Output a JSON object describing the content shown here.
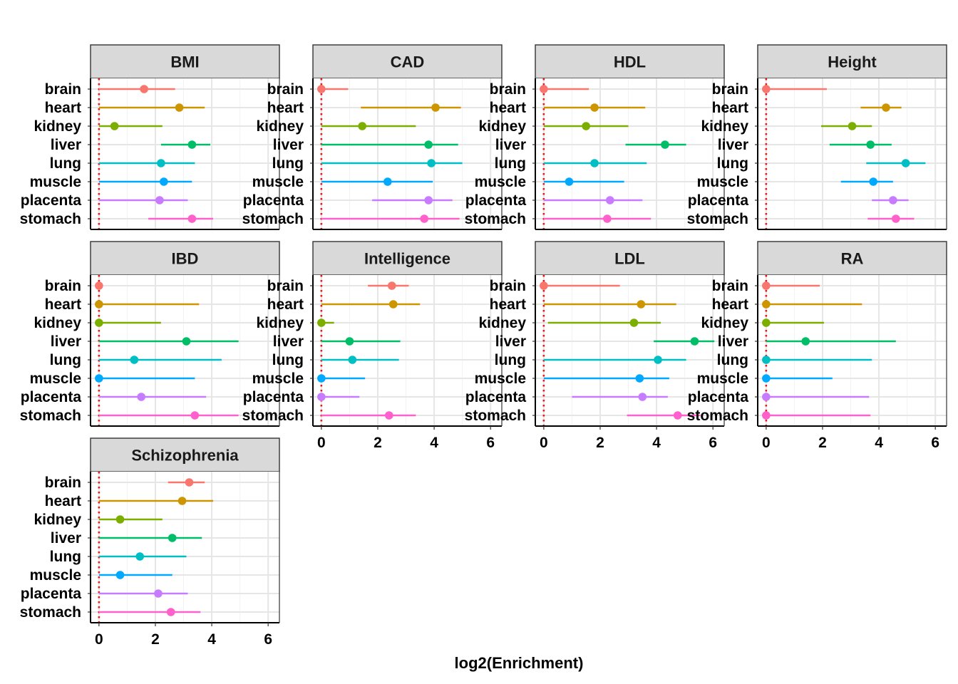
{
  "chart_data": {
    "type": "dot-interval",
    "facet_layout": "4 columns, free y scale per panel, shared x",
    "xlabel": "log2(Enrichment)",
    "xlim": [
      -0.3,
      6.4
    ],
    "x_ticks": [
      0,
      2,
      4,
      6
    ],
    "reference_line": {
      "x": 0,
      "style": "dotted",
      "color": "#e41a1c"
    },
    "grid": true,
    "legend": "none",
    "categories": [
      "brain",
      "heart",
      "kidney",
      "liver",
      "lung",
      "muscle",
      "placenta",
      "stomach"
    ],
    "category_colors": [
      "#F8766D",
      "#CD9600",
      "#7CAE00",
      "#00BE67",
      "#00BFC4",
      "#00A9FF",
      "#C77CFF",
      "#FF61CC"
    ],
    "panels": [
      {
        "name": "BMI",
        "points": [
          1.6,
          2.85,
          0.55,
          3.3,
          2.2,
          2.3,
          2.15,
          3.3
        ],
        "low": [
          0,
          0,
          0,
          2.2,
          0,
          0,
          0,
          1.75
        ],
        "high": [
          2.7,
          3.75,
          2.25,
          3.95,
          3.4,
          3.3,
          3.15,
          4.05
        ]
      },
      {
        "name": "CAD",
        "points": [
          0,
          4.05,
          1.45,
          3.8,
          3.9,
          2.35,
          3.8,
          3.65
        ],
        "low": [
          0,
          1.4,
          0,
          0,
          0,
          0,
          1.8,
          0
        ],
        "high": [
          0.95,
          4.95,
          3.35,
          4.85,
          5.0,
          3.95,
          4.65,
          4.9
        ]
      },
      {
        "name": "HDL",
        "points": [
          0,
          1.8,
          1.5,
          4.3,
          1.8,
          0.9,
          2.35,
          2.25
        ],
        "low": [
          0,
          0,
          0,
          2.9,
          0,
          0,
          0,
          0
        ],
        "high": [
          1.6,
          3.6,
          3.0,
          5.05,
          3.65,
          2.85,
          3.5,
          3.8
        ]
      },
      {
        "name": "Height",
        "points": [
          0,
          4.25,
          3.05,
          3.7,
          4.95,
          3.8,
          4.5,
          4.6
        ],
        "low": [
          0,
          3.35,
          1.95,
          2.25,
          3.55,
          2.65,
          3.75,
          3.6
        ],
        "high": [
          2.15,
          4.8,
          3.75,
          4.45,
          5.65,
          4.5,
          5.05,
          5.25
        ]
      },
      {
        "name": "IBD",
        "points": [
          0,
          0,
          0,
          3.1,
          1.25,
          0,
          1.5,
          3.4
        ],
        "low": [
          0,
          0,
          0,
          0,
          0,
          0,
          0,
          0
        ],
        "high": [
          0,
          3.55,
          2.2,
          4.95,
          4.35,
          3.4,
          3.8,
          4.95
        ]
      },
      {
        "name": "Intelligence",
        "points": [
          2.5,
          2.55,
          0,
          1.0,
          1.1,
          0,
          0,
          2.4
        ],
        "low": [
          1.65,
          0,
          0,
          0,
          0,
          0,
          0,
          0
        ],
        "high": [
          3.1,
          3.5,
          0.45,
          2.8,
          2.75,
          1.55,
          1.35,
          3.35
        ]
      },
      {
        "name": "LDL",
        "points": [
          0,
          3.45,
          3.2,
          5.35,
          4.05,
          3.4,
          3.5,
          4.75
        ],
        "low": [
          0,
          0,
          0.15,
          3.9,
          0,
          0,
          1.0,
          2.95
        ],
        "high": [
          2.7,
          4.7,
          4.15,
          6.05,
          5.05,
          4.45,
          4.4,
          5.55
        ]
      },
      {
        "name": "RA",
        "points": [
          0,
          0,
          0,
          1.4,
          0,
          0,
          0,
          0
        ],
        "low": [
          0,
          0,
          0,
          0,
          0,
          0,
          0,
          0
        ],
        "high": [
          1.9,
          3.4,
          2.05,
          4.6,
          3.75,
          2.35,
          3.65,
          3.7
        ]
      },
      {
        "name": "Schizophrenia",
        "points": [
          3.2,
          2.95,
          0.75,
          2.6,
          1.45,
          0.75,
          2.1,
          2.55
        ],
        "low": [
          2.45,
          0,
          0,
          0,
          0,
          0,
          0,
          0
        ],
        "high": [
          3.75,
          4.05,
          2.25,
          3.65,
          3.1,
          2.6,
          3.15,
          3.6
        ]
      }
    ]
  }
}
